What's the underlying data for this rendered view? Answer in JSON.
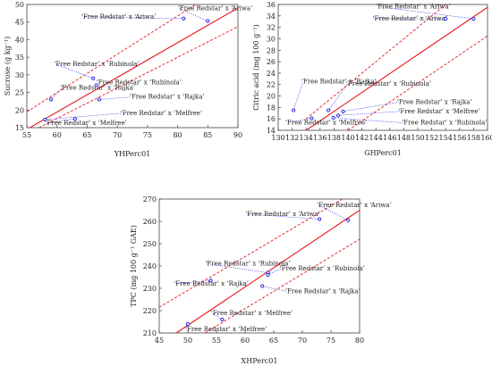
{
  "chart_data": [
    {
      "type": "scatter",
      "xlabel": "YHPerc01",
      "ylabel": "Sucrose (g kg⁻¹)",
      "xlim": [
        55,
        90
      ],
      "ylim": [
        15,
        50
      ],
      "xticks": [
        "55",
        "60",
        "65",
        "70",
        "75",
        "80",
        "85",
        "90"
      ],
      "yticks": [
        "15",
        "20",
        "25",
        "30",
        "35",
        "40",
        "45",
        "50"
      ],
      "grid": false,
      "colors": {
        "points": "#2a2ae8",
        "line": "#e8141c",
        "leader": "#2a2ae8"
      },
      "points": [
        {
          "x": 85.0,
          "y": 45.3,
          "label": "‘Free Redstar’ x ‘Ariwa’"
        },
        {
          "x": 81.0,
          "y": 46.0,
          "label": "‘Free Redstar’ x ‘Ariwa’"
        },
        {
          "x": 66.0,
          "y": 29.0,
          "label": "‘Free Redstar’ x ‘Rubinola’"
        },
        {
          "x": 66.5,
          "y": 27.0,
          "label": "‘Free Redstar’ x ‘Rubinola’"
        },
        {
          "x": 59.0,
          "y": 23.0,
          "label": "‘Free Redstar’ x ‘Rajka’"
        },
        {
          "x": 67.0,
          "y": 23.0,
          "label": "‘Free Redstar’ x ‘Rajka’"
        },
        {
          "x": 58.0,
          "y": 17.3,
          "label": "‘Free Redstar’ x ‘Melfree’"
        },
        {
          "x": 63.0,
          "y": 17.5,
          "label": "‘Free Redstar’ x ‘Melfree’"
        }
      ],
      "fit_line": [
        [
          55,
          14.5
        ],
        [
          90,
          49.0
        ]
      ],
      "ci_upper": [
        [
          55,
          19.5
        ],
        [
          83,
          50.0
        ]
      ],
      "ci_lower": [
        [
          57,
          15.0
        ],
        [
          90,
          43.7
        ]
      ],
      "annotations": [
        {
          "text": "‘Free Redstar’ x ‘Ariwa’",
          "tx": 80.0,
          "ty": 48.3,
          "point": 0
        },
        {
          "text": "‘Free Redstar’ x ‘Ariwa’",
          "tx": 64.0,
          "ty": 46.0,
          "point": 1
        },
        {
          "text": "‘Free Redstar’ x ‘Rubinola’",
          "tx": 59.5,
          "ty": 32.5,
          "point": 2
        },
        {
          "text": "‘Free Redstar’ x ‘Rubinola’",
          "tx": 66.5,
          "ty": 27.3,
          "point": 3
        },
        {
          "text": "‘Free Redstar’ x ‘Rajka’",
          "tx": 60.5,
          "ty": 25.8,
          "point": 4
        },
        {
          "text": "‘Free Redstar’ x ‘Rajka’",
          "tx": 72.0,
          "ty": 23.2,
          "point": 5
        },
        {
          "text": "‘Free Redstar’ x ‘Melfree’",
          "tx": 70.5,
          "ty": 18.6,
          "point": 6
        },
        {
          "text": "‘Free Redstar’ x ‘Melfree’",
          "tx": 58.0,
          "ty": 15.7,
          "point": 7
        }
      ]
    },
    {
      "type": "scatter",
      "xlabel": "GHPerc01",
      "ylabel": "Citric acid (mg 100 g⁻¹)",
      "xlim": [
        130,
        160
      ],
      "ylim": [
        14,
        36
      ],
      "xticks": [
        "130",
        "132",
        "134",
        "136",
        "138",
        "140",
        "142",
        "144",
        "146",
        "148",
        "150",
        "152",
        "154",
        "156",
        "158",
        "160"
      ],
      "yticks": [
        "14",
        "16",
        "18",
        "20",
        "22",
        "24",
        "26",
        "28",
        "30",
        "32",
        "34",
        "36"
      ],
      "grid": false,
      "colors": {
        "points": "#2a2ae8",
        "line": "#e8141c",
        "leader": "#2a2ae8"
      },
      "points": [
        {
          "x": 158.0,
          "y": 33.5,
          "label": "‘Free Redstar’ x ‘Ariwa’"
        },
        {
          "x": 154.0,
          "y": 33.5,
          "label": "‘Free Redstar’ x ‘Ariwa’"
        },
        {
          "x": 132.2,
          "y": 17.5,
          "label": "‘Free Redstar’ x ‘Rajka’"
        },
        {
          "x": 137.2,
          "y": 17.5,
          "label": "‘Free Redstar’ x ‘Rubinola’"
        },
        {
          "x": 139.3,
          "y": 17.3,
          "label": "‘Free Redstar’ x ‘Rajka’"
        },
        {
          "x": 138.6,
          "y": 16.6,
          "label": "‘Free Redstar’ x ‘Melfree’"
        },
        {
          "x": 134.8,
          "y": 16.1,
          "label": "‘Free Redstar’ x ‘Melfree’"
        },
        {
          "x": 137.9,
          "y": 16.2,
          "label": "‘Free Redstar’ x ‘Rubinola’"
        }
      ],
      "fit_line": [
        [
          134,
          14.0
        ],
        [
          160,
          35.5
        ]
      ],
      "ci_upper": [
        [
          134,
          16.0
        ],
        [
          154,
          36.0
        ]
      ],
      "ci_lower": [
        [
          140,
          14.0
        ],
        [
          160,
          30.5
        ]
      ],
      "annotations": [
        {
          "text": "‘Free Redstar’ x ‘Ariwa’",
          "tx": 144.0,
          "ty": 35.3,
          "point": 0
        },
        {
          "text": "‘Free Redstar’ x ‘Ariwa’",
          "tx": 143.5,
          "ty": 33.2,
          "point": 1
        },
        {
          "text": "‘Free Redstar’ x ‘Rajka’",
          "tx": 133.3,
          "ty": 22.2,
          "point": 2
        },
        {
          "text": "‘Free Redstar’ x ‘Rubinola’",
          "tx": 139.7,
          "ty": 21.8,
          "point": 3
        },
        {
          "text": "‘Free Redstar’ x ‘Rajka’",
          "tx": 147.0,
          "ty": 18.6,
          "point": 4
        },
        {
          "text": "‘Free Redstar’ x ‘Melfree’",
          "tx": 147.2,
          "ty": 17.0,
          "point": 5
        },
        {
          "text": "‘Free Redstar’ x ‘Melfree’",
          "tx": 131.0,
          "ty": 15.0,
          "point": 6
        },
        {
          "text": "‘Free Redstar’ x ‘Rubinola’",
          "tx": 147.7,
          "ty": 15.0,
          "point": 7
        }
      ]
    },
    {
      "type": "scatter",
      "xlabel": "XHPerc01",
      "ylabel": "TPC (mg 100 g⁻¹ GAE)",
      "xlim": [
        45,
        80
      ],
      "ylim": [
        210,
        270
      ],
      "xticks": [
        "45",
        "50",
        "55",
        "60",
        "65",
        "70",
        "75",
        "80"
      ],
      "yticks": [
        "210",
        "220",
        "230",
        "240",
        "250",
        "260",
        "270"
      ],
      "grid": false,
      "colors": {
        "points": "#2a2ae8",
        "line": "#e8141c",
        "leader": "#2a2ae8"
      },
      "points": [
        {
          "x": 78.0,
          "y": 260.5,
          "label": "‘Free Redstar’ x ‘Ariwa’"
        },
        {
          "x": 73.0,
          "y": 261.0,
          "label": "‘Free Redstar’ x ‘Ariwa’"
        },
        {
          "x": 64.0,
          "y": 237.0,
          "label": "‘Free Redstar’ x ‘Rubinola’"
        },
        {
          "x": 64.0,
          "y": 236.0,
          "label": "‘Free Redstar’ x ‘Rubinola’"
        },
        {
          "x": 54.0,
          "y": 233.5,
          "label": "‘Free Redstar’ x ‘Rajka’"
        },
        {
          "x": 63.0,
          "y": 231.0,
          "label": "‘Free Redstar’ x ‘Rajka’"
        },
        {
          "x": 56.0,
          "y": 216.0,
          "label": "‘Free Redstar’ x ‘Melfree’"
        },
        {
          "x": 50.0,
          "y": 214.0,
          "label": "‘Free Redstar’ x ‘Melfree’"
        }
      ],
      "fit_line": [
        [
          48,
          210.0
        ],
        [
          80,
          265.0
        ]
      ],
      "ci_upper": [
        [
          45,
          221.5
        ],
        [
          77,
          270.0
        ]
      ],
      "ci_lower": [
        [
          53,
          210.0
        ],
        [
          80,
          252.0
        ]
      ],
      "annotations": [
        {
          "text": "‘Free Redstar’ x ‘Ariwa’",
          "tx": 72.5,
          "ty": 266.5,
          "point": 0
        },
        {
          "text": "‘Free Redstar’ x ‘Ariwa’",
          "tx": 60.0,
          "ty": 262.5,
          "point": 1
        },
        {
          "text": "‘Free Redstar’ x ‘Rubinola’",
          "tx": 53.0,
          "ty": 240.2,
          "point": 2
        },
        {
          "text": "‘Free Redstar’ x ‘Rubinola’",
          "tx": 66.0,
          "ty": 238.0,
          "point": 3
        },
        {
          "text": "‘Free Redstar’ x ‘Rajka’",
          "tx": 47.5,
          "ty": 231.3,
          "point": 4
        },
        {
          "text": "‘Free Redstar’ x ‘Rajka’",
          "tx": 67.0,
          "ty": 227.8,
          "point": 5
        },
        {
          "text": "‘Free Redstar’ x ‘Melfree’",
          "tx": 54.0,
          "ty": 218.0,
          "point": 6
        },
        {
          "text": "‘Free Redstar’ x ‘Melfree’",
          "tx": 49.5,
          "ty": 210.8,
          "point": 7
        }
      ]
    }
  ]
}
